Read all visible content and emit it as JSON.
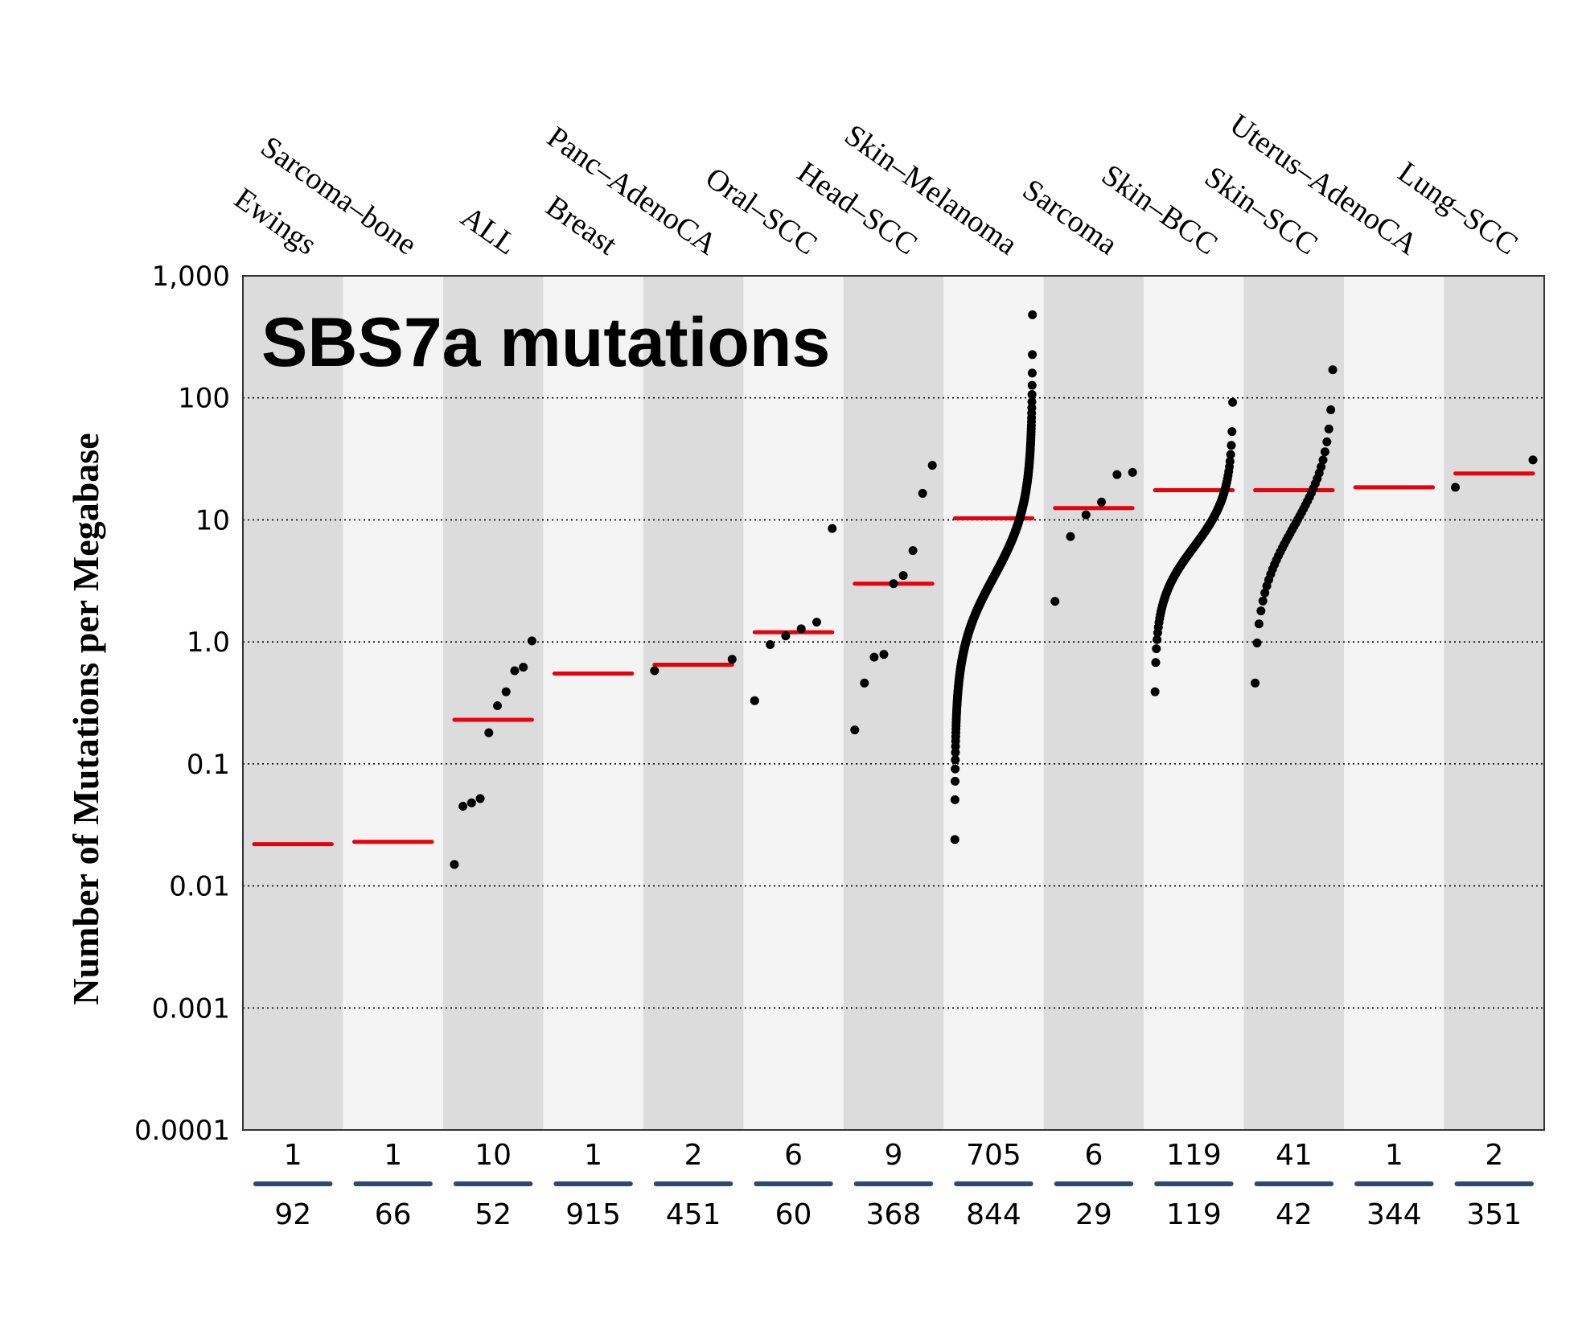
{
  "chart_data": {
    "type": "scatter",
    "title": "SBS7a mutations",
    "xlabel": "",
    "ylabel": "Number of Mutations per Megabase",
    "yscale": "log",
    "ylim": [
      0.0001,
      1000
    ],
    "yticks": [
      {
        "value": 1000,
        "label": "1,000"
      },
      {
        "value": 100,
        "label": "100"
      },
      {
        "value": 10,
        "label": "10"
      },
      {
        "value": 1,
        "label": "1.0"
      },
      {
        "value": 0.1,
        "label": "0.1"
      },
      {
        "value": 0.01,
        "label": "0.01"
      },
      {
        "value": 0.001,
        "label": "0.001"
      },
      {
        "value": 0.0001,
        "label": "0.0001"
      }
    ],
    "grid": "dotted horizontal at decades",
    "colors": {
      "band_dark": "#dcdcdc",
      "band_light": "#f4f4f4",
      "median": "#e8000b",
      "point": "#000000",
      "separator": "#2c4a70"
    },
    "categories": [
      {
        "name": "Ewings",
        "positive": 1,
        "total": 92,
        "median": 0.022,
        "points": []
      },
      {
        "name": "Sarcoma–bone",
        "positive": 1,
        "total": 66,
        "median": 0.023,
        "points": []
      },
      {
        "name": "ALL",
        "positive": 10,
        "total": 52,
        "median": 0.23,
        "points": [
          0.015,
          0.045,
          0.048,
          0.052,
          0.18,
          0.3,
          0.39,
          0.58,
          0.62,
          1.02
        ]
      },
      {
        "name": "Breast",
        "positive": 1,
        "total": 915,
        "median": 0.55,
        "points": []
      },
      {
        "name": "Panc–AdenoCA",
        "positive": 2,
        "total": 451,
        "median": 0.65,
        "points": [
          0.58,
          0.72
        ]
      },
      {
        "name": "Oral–SCC",
        "positive": 6,
        "total": 60,
        "median": 1.2,
        "points": [
          0.33,
          0.95,
          1.12,
          1.28,
          1.45,
          8.5
        ]
      },
      {
        "name": "Head–SCC",
        "positive": 9,
        "total": 368,
        "median": 3.0,
        "points": [
          0.19,
          0.46,
          0.75,
          0.79,
          3.0,
          3.5,
          5.6,
          16.5,
          28
        ]
      },
      {
        "name": "Skin–Melanoma",
        "positive": 705,
        "total": 844,
        "median": 10.3,
        "points_summary": {
          "min": 0.024,
          "max": 480,
          "n": 705
        }
      },
      {
        "name": "Sarcoma",
        "positive": 6,
        "total": 29,
        "median": 12.5,
        "points": [
          2.15,
          7.3,
          11,
          14,
          23.5,
          24.5
        ]
      },
      {
        "name": "Skin–BCC",
        "positive": 119,
        "total": 119,
        "median": 17.5,
        "points_summary": {
          "min": 0.39,
          "max": 92,
          "n": 119
        }
      },
      {
        "name": "Skin–SCC",
        "positive": 41,
        "total": 42,
        "median": 17.5,
        "points_summary": {
          "min": 0.46,
          "max": 170,
          "n": 41
        }
      },
      {
        "name": "Uterus–AdenoCA",
        "positive": 1,
        "total": 344,
        "median": 18.5,
        "points": []
      },
      {
        "name": "Lung–SCC",
        "positive": 2,
        "total": 351,
        "median": 24,
        "points": [
          18.5,
          31
        ]
      }
    ]
  }
}
